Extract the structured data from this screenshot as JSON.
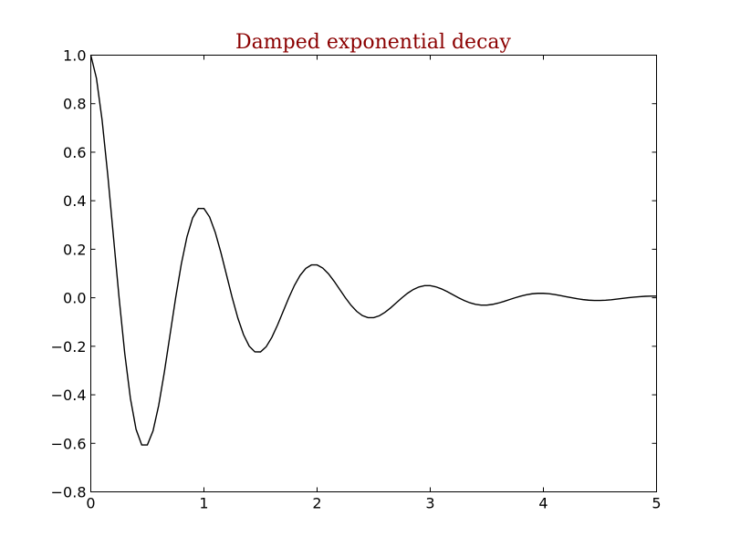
{
  "chart_data": {
    "type": "line",
    "title": "Damped exponential decay",
    "title_color": "#8b0000",
    "line_color": "#000000",
    "function": "exp(-x) * cos(2*pi*x)",
    "x_range": [
      0,
      5
    ],
    "xlim": [
      0,
      5
    ],
    "ylim": [
      -0.8,
      1.0
    ],
    "xticks": [
      0,
      1,
      2,
      3,
      4,
      5
    ],
    "xtick_labels": [
      "0",
      "1",
      "2",
      "3",
      "4",
      "5"
    ],
    "yticks": [
      -0.8,
      -0.6,
      -0.4,
      -0.2,
      0.0,
      0.2,
      0.4,
      0.6,
      0.8,
      1.0
    ],
    "ytick_labels": [
      "−0.8",
      "−0.6",
      "−0.4",
      "−0.2",
      "0.0",
      "0.2",
      "0.4",
      "0.6",
      "0.8",
      "1.0"
    ],
    "grid": false,
    "legend": "none",
    "xlabel": "",
    "ylabel": ""
  }
}
